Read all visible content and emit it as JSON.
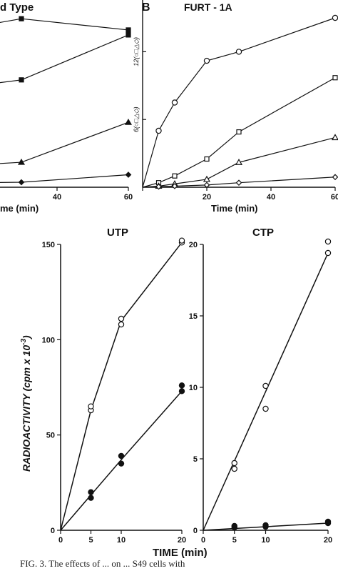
{
  "chart_data": [
    {
      "type": "line",
      "panel_id": "A",
      "title": "Wild Type",
      "title_visible": "d Type",
      "xlabel_visible": "me (min)",
      "x_ticks": [
        40,
        60
      ],
      "x_range": [
        0,
        60
      ],
      "y_range": [
        0,
        15
      ],
      "series": [
        {
          "marker": "filled-square",
          "x": [
            0,
            30,
            60
          ],
          "y": [
            12,
            13.5,
            12.6
          ]
        },
        {
          "marker": "filled-square",
          "x": [
            0,
            30,
            60
          ],
          "y": [
            7.5,
            8.6,
            12.2
          ]
        },
        {
          "marker": "filled-triangle",
          "x": [
            0,
            30,
            60
          ],
          "y": [
            1.5,
            2.0,
            5.2
          ]
        },
        {
          "marker": "filled-diamond",
          "x": [
            0,
            30,
            60
          ],
          "y": [
            0.3,
            0.4,
            1.0
          ]
        }
      ]
    },
    {
      "type": "line",
      "panel_id": "B",
      "title": "FURT - 1A",
      "xlabel": "Time (min)",
      "x_ticks": [
        "0",
        "20",
        "40",
        "60"
      ],
      "x_range": [
        0,
        60
      ],
      "y_range": [
        0,
        15
      ],
      "y_ticks": [
        {
          "value": 6,
          "label": "6(○□△◇)"
        },
        {
          "value": 12,
          "label": "12(○□△◇)"
        }
      ],
      "series": [
        {
          "marker": "open-circle",
          "x": [
            0,
            5,
            10,
            20,
            30,
            60
          ],
          "y": [
            0,
            5.0,
            7.5,
            11.2,
            12.0,
            15.0
          ]
        },
        {
          "marker": "open-square",
          "x": [
            0,
            5,
            10,
            20,
            30,
            60
          ],
          "y": [
            0,
            0.4,
            1.0,
            2.5,
            4.9,
            9.7
          ]
        },
        {
          "marker": "open-triangle",
          "x": [
            0,
            5,
            10,
            20,
            30,
            60
          ],
          "y": [
            0,
            0.1,
            0.3,
            0.7,
            2.2,
            4.4
          ]
        },
        {
          "marker": "open-diamond",
          "x": [
            0,
            5,
            10,
            20,
            30,
            60
          ],
          "y": [
            0,
            0.05,
            0.1,
            0.2,
            0.4,
            0.9
          ]
        }
      ]
    },
    {
      "type": "scatter",
      "panel_id": "C",
      "title": "UTP",
      "x_ticks": [
        "0",
        "5",
        "10",
        "20"
      ],
      "x_range": [
        0,
        20
      ],
      "y_ticks": [
        "0",
        "50",
        "100",
        "150"
      ],
      "y_range": [
        0,
        150
      ],
      "series": [
        {
          "marker": "open-circle",
          "x": [
            5,
            5,
            10,
            10,
            20,
            20
          ],
          "y": [
            63,
            65,
            108,
            111,
            151,
            152
          ],
          "fit": [
            [
              0,
              0
            ],
            [
              5,
              63
            ],
            [
              10,
              110
            ],
            [
              20,
              151
            ]
          ]
        },
        {
          "marker": "filled-circle",
          "x": [
            5,
            5,
            10,
            10,
            20,
            20
          ],
          "y": [
            17,
            20,
            35,
            39,
            73,
            76
          ],
          "fit": [
            [
              0,
              0
            ],
            [
              5,
              18.5
            ],
            [
              10,
              37
            ],
            [
              20,
              73
            ]
          ]
        }
      ]
    },
    {
      "type": "scatter",
      "panel_id": "D",
      "title": "CTP",
      "x_ticks": [
        "0",
        "5",
        "10",
        "20"
      ],
      "x_range": [
        0,
        20
      ],
      "y_ticks": [
        "0",
        "5",
        "10",
        "15",
        "20"
      ],
      "y_range": [
        0,
        20
      ],
      "series": [
        {
          "marker": "open-circle",
          "x": [
            5,
            5,
            10,
            10,
            20,
            20
          ],
          "y": [
            4.3,
            4.7,
            8.5,
            10.1,
            19.4,
            20.2
          ],
          "fit": [
            [
              0,
              0
            ],
            [
              20,
              19.4
            ]
          ]
        },
        {
          "marker": "filled-circle",
          "x": [
            5,
            5,
            10,
            10,
            20,
            20
          ],
          "y": [
            0.2,
            0.3,
            0.25,
            0.35,
            0.5,
            0.6
          ],
          "fit": [
            [
              0,
              0
            ],
            [
              20,
              0.5
            ]
          ]
        }
      ]
    }
  ],
  "shared_labels": {
    "panel_b_letter": "B",
    "bottom_ylabel": "RADIOACTIVITY  (cpm x 10",
    "bottom_ylabel_exp": "-3",
    "bottom_ylabel_end": ")",
    "bottom_xlabel": "TIME (min)"
  },
  "caption": "FIG. 3. The effects of ... on ... S49 cells with"
}
